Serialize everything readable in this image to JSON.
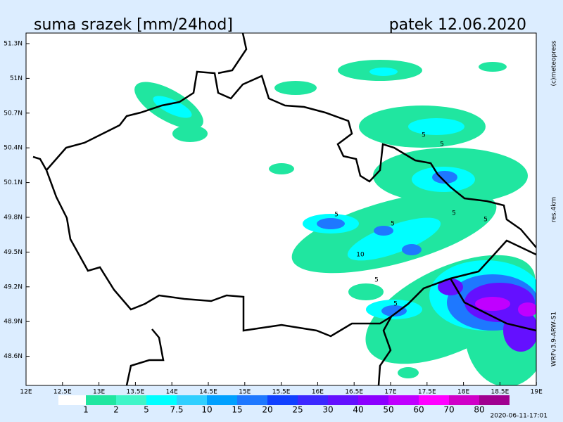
{
  "header": {
    "title": "suma srazek [mm/24hod]",
    "date": "patek 12.06.2020"
  },
  "map": {
    "lat_labels": [
      "51.3N",
      "51N",
      "50.7N",
      "50.4N",
      "50.1N",
      "49.8N",
      "49.5N",
      "49.2N",
      "48.9N",
      "48.6N"
    ],
    "lon_labels": [
      "12E",
      "12.5E",
      "13E",
      "13.5E",
      "14E",
      "14.5E",
      "15E",
      "15.5E",
      "16E",
      "16.5E",
      "17E",
      "17.5E",
      "18E",
      "18.5E",
      "19E"
    ],
    "contour_labels": [
      "5",
      "5",
      "5",
      "5",
      "5",
      "10",
      "5",
      "5",
      "5"
    ]
  },
  "legend": {
    "items": [
      {
        "label": "1",
        "color": "#20e6a0"
      },
      {
        "label": "2",
        "color": "#40f5c8"
      },
      {
        "label": "5",
        "color": "#00ffff"
      },
      {
        "label": "7.5",
        "color": "#30cfff"
      },
      {
        "label": "10",
        "color": "#00a0ff"
      },
      {
        "label": "15",
        "color": "#1e78ff"
      },
      {
        "label": "20",
        "color": "#1040ff"
      },
      {
        "label": "25",
        "color": "#3c28ff"
      },
      {
        "label": "30",
        "color": "#6410ff"
      },
      {
        "label": "40",
        "color": "#8c00ff"
      },
      {
        "label": "50",
        "color": "#c000ff"
      },
      {
        "label": "60",
        "color": "#ff00ff"
      },
      {
        "label": "70",
        "color": "#d000c8"
      },
      {
        "label": "80",
        "color": "#a00090"
      }
    ]
  },
  "side": {
    "copyright": "(c)meteopress",
    "resolution": "res.4km",
    "model": "WRFv3.9-ARW-S1"
  },
  "footer": {
    "timestamp": "2020-06-11-17:01"
  }
}
